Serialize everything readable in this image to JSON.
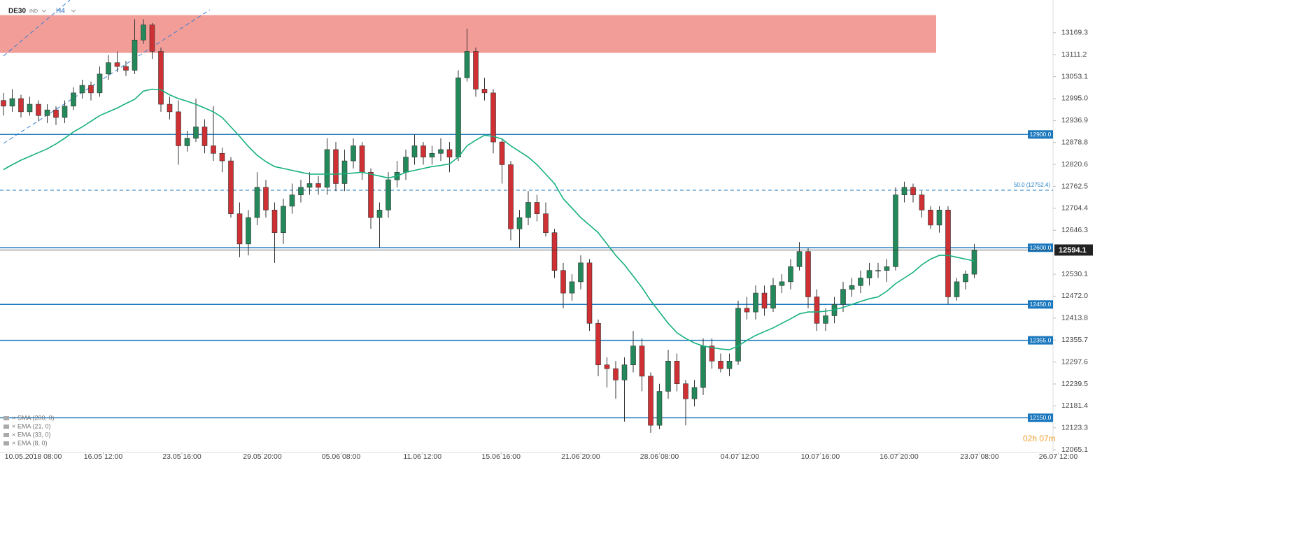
{
  "chart_data": {
    "type": "candlestick",
    "symbol": "DE30",
    "market": "IND",
    "timeframe": "H4",
    "up_color": "#23895a",
    "down_color": "#cf3034",
    "ema_color": "#16b07f",
    "level_color": "#1b78be",
    "xlim": [
      -0.4,
      120.0
    ],
    "ylim": [
      12058,
      13256
    ],
    "xticks": [
      {
        "value": 3.4,
        "label": "10.05.2018  08:00"
      },
      {
        "value": 11.4,
        "label": "16.05  12:00"
      },
      {
        "value": 20.4,
        "label": "23.05  16:00"
      },
      {
        "value": 29.6,
        "label": "29.05  20:00"
      },
      {
        "value": 38.6,
        "label": "05.06  08:00"
      },
      {
        "value": 47.9,
        "label": "11.06  12:00"
      },
      {
        "value": 56.9,
        "label": "15.06  16:00"
      },
      {
        "value": 66,
        "label": "21.06  20:00"
      },
      {
        "value": 75,
        "label": "28.06  08:00"
      },
      {
        "value": 84.2,
        "label": "04.07  12:00"
      },
      {
        "value": 93.4,
        "label": "10.07  16:00"
      },
      {
        "value": 102.4,
        "label": "16.07  20:00"
      },
      {
        "value": 111.6,
        "label": "23.07  08:00"
      },
      {
        "value": 120.6,
        "label": "26.07  12:00"
      }
    ],
    "yticks": [
      13169.3,
      13111.2,
      13053.1,
      {
        "value": 12995.0,
        "label": "12995.0"
      },
      12936.9,
      12878.8,
      12820.6,
      12762.5,
      12704.4,
      12646.3,
      12530.1,
      {
        "value": 12472.0,
        "label": "12472.0"
      },
      12413.8,
      12355.7,
      12297.6,
      12239.5,
      12181.4,
      12123.3,
      12065.1
    ],
    "zone": {
      "from": 13116,
      "to": 13216,
      "color": "#f29d98"
    },
    "levels": [
      {
        "value": 12900,
        "label": "12900.0"
      },
      {
        "value": 12600,
        "label": "12600.0"
      },
      {
        "value": 12450,
        "label": "12450.0"
      },
      {
        "value": 12355,
        "label": "12355.0"
      },
      {
        "value": 12150,
        "label": "12150.0"
      }
    ],
    "fib": {
      "value": 12752.4,
      "label": "50.0 (12752.4)"
    },
    "last_price": 12594.1,
    "timer": "02h 07m",
    "indicators": [
      "SMA  (200, 0)",
      "EMA  (21, 0)",
      "EMA  (33, 0)",
      "EMA  (8, 0)"
    ],
    "candles": [
      [
        12990,
        13010,
        12950,
        12975
      ],
      [
        12975,
        13020,
        12960,
        12995
      ],
      [
        12995,
        13005,
        12945,
        12960
      ],
      [
        12960,
        13000,
        12950,
        12980
      ],
      [
        12980,
        12990,
        12935,
        12950
      ],
      [
        12950,
        12980,
        12930,
        12965
      ],
      [
        12965,
        12975,
        12925,
        12945
      ],
      [
        12945,
        12990,
        12930,
        12975
      ],
      [
        12975,
        13025,
        12965,
        13010
      ],
      [
        13010,
        13045,
        12995,
        13030
      ],
      [
        13030,
        13040,
        12990,
        13010
      ],
      [
        13010,
        13080,
        13000,
        13060
      ],
      [
        13060,
        13110,
        13045,
        13090
      ],
      [
        13090,
        13120,
        13065,
        13080
      ],
      [
        13080,
        13095,
        13055,
        13070
      ],
      [
        13070,
        13205,
        13060,
        13150
      ],
      [
        13150,
        13205,
        13140,
        13190
      ],
      [
        13190,
        13195,
        13100,
        13120
      ],
      [
        13120,
        13130,
        12960,
        12980
      ],
      [
        12980,
        13000,
        12940,
        12960
      ],
      [
        12960,
        12990,
        12820,
        12870
      ],
      [
        12870,
        12910,
        12855,
        12890
      ],
      [
        12890,
        12995,
        12880,
        12920
      ],
      [
        12920,
        12940,
        12850,
        12870
      ],
      [
        12870,
        12975,
        12830,
        12850
      ],
      [
        12850,
        12865,
        12800,
        12830
      ],
      [
        12830,
        12840,
        12680,
        12690
      ],
      [
        12690,
        12720,
        12575,
        12610
      ],
      [
        12610,
        12700,
        12580,
        12680
      ],
      [
        12680,
        12800,
        12660,
        12760
      ],
      [
        12760,
        12780,
        12680,
        12700
      ],
      [
        12700,
        12720,
        12560,
        12640
      ],
      [
        12640,
        12730,
        12610,
        12710
      ],
      [
        12710,
        12770,
        12690,
        12740
      ],
      [
        12740,
        12780,
        12720,
        12760
      ],
      [
        12760,
        12800,
        12740,
        12770
      ],
      [
        12770,
        12790,
        12740,
        12760
      ],
      [
        12760,
        12890,
        12740,
        12860
      ],
      [
        12860,
        12880,
        12750,
        12770
      ],
      [
        12770,
        12860,
        12750,
        12830
      ],
      [
        12830,
        12890,
        12810,
        12870
      ],
      [
        12870,
        12880,
        12780,
        12800
      ],
      [
        12800,
        12810,
        12650,
        12680
      ],
      [
        12680,
        12720,
        12600,
        12700
      ],
      [
        12700,
        12800,
        12680,
        12780
      ],
      [
        12780,
        12830,
        12760,
        12800
      ],
      [
        12800,
        12860,
        12780,
        12840
      ],
      [
        12840,
        12900,
        12820,
        12870
      ],
      [
        12870,
        12880,
        12820,
        12840
      ],
      [
        12840,
        12870,
        12820,
        12850
      ],
      [
        12850,
        12890,
        12830,
        12860
      ],
      [
        12860,
        12880,
        12800,
        12840
      ],
      [
        12840,
        13070,
        12830,
        13050
      ],
      [
        13050,
        13180,
        13040,
        13120
      ],
      [
        13120,
        13130,
        13000,
        13020
      ],
      [
        13020,
        13050,
        12990,
        13010
      ],
      [
        13010,
        13020,
        12850,
        12880
      ],
      [
        12880,
        12890,
        12770,
        12820
      ],
      [
        12820,
        12830,
        12620,
        12650
      ],
      [
        12650,
        12700,
        12600,
        12680
      ],
      [
        12680,
        12750,
        12660,
        12720
      ],
      [
        12720,
        12740,
        12670,
        12690
      ],
      [
        12690,
        12720,
        12630,
        12640
      ],
      [
        12640,
        12650,
        12520,
        12540
      ],
      [
        12540,
        12560,
        12440,
        12480
      ],
      [
        12480,
        12530,
        12460,
        12510
      ],
      [
        12510,
        12580,
        12490,
        12560
      ],
      [
        12560,
        12570,
        12380,
        12400
      ],
      [
        12400,
        12410,
        12260,
        12290
      ],
      [
        12290,
        12310,
        12230,
        12280
      ],
      [
        12280,
        12300,
        12200,
        12250
      ],
      [
        12250,
        12310,
        12140,
        12290
      ],
      [
        12290,
        12380,
        12270,
        12340
      ],
      [
        12340,
        12360,
        12220,
        12260
      ],
      [
        12260,
        12270,
        12110,
        12130
      ],
      [
        12130,
        12240,
        12120,
        12220
      ],
      [
        12220,
        12330,
        12200,
        12300
      ],
      [
        12300,
        12320,
        12220,
        12240
      ],
      [
        12240,
        12250,
        12130,
        12200
      ],
      [
        12200,
        12250,
        12180,
        12230
      ],
      [
        12230,
        12360,
        12210,
        12340
      ],
      [
        12340,
        12360,
        12280,
        12300
      ],
      [
        12300,
        12320,
        12270,
        12280
      ],
      [
        12280,
        12320,
        12260,
        12300
      ],
      [
        12300,
        12460,
        12290,
        12440
      ],
      [
        12440,
        12470,
        12410,
        12430
      ],
      [
        12430,
        12500,
        12410,
        12480
      ],
      [
        12480,
        12500,
        12420,
        12440
      ],
      [
        12440,
        12520,
        12430,
        12500
      ],
      [
        12500,
        12530,
        12480,
        12510
      ],
      [
        12510,
        12570,
        12490,
        12550
      ],
      [
        12550,
        12615,
        12540,
        12590
      ],
      [
        12590,
        12600,
        12440,
        12470
      ],
      [
        12470,
        12490,
        12380,
        12400
      ],
      [
        12400,
        12440,
        12380,
        12420
      ],
      [
        12420,
        12470,
        12400,
        12450
      ],
      [
        12450,
        12510,
        12430,
        12490
      ],
      [
        12490,
        12520,
        12470,
        12500
      ],
      [
        12500,
        12540,
        12480,
        12520
      ],
      [
        12520,
        12560,
        12500,
        12540
      ],
      [
        12540,
        12560,
        12520,
        12540
      ],
      [
        12540,
        12570,
        12510,
        12550
      ],
      [
        12550,
        12760,
        12540,
        12740
      ],
      [
        12740,
        12775,
        12720,
        12760
      ],
      [
        12760,
        12770,
        12720,
        12740
      ],
      [
        12740,
        12750,
        12680,
        12700
      ],
      [
        12700,
        12710,
        12650,
        12660
      ],
      [
        12660,
        12710,
        12640,
        12700
      ],
      [
        12700,
        12710,
        12450,
        12470
      ],
      [
        12470,
        12520,
        12460,
        12510
      ],
      [
        12510,
        12540,
        12490,
        12530
      ],
      [
        12530,
        12610,
        12520,
        12594.1
      ]
    ],
    "ema": [
      12807,
      12820,
      12832,
      12842,
      12852,
      12862,
      12875,
      12890,
      12907,
      12920,
      12935,
      12950,
      12960,
      12970,
      12982,
      12993,
      13015,
      13020,
      13018,
      13005,
      12995,
      12988,
      12980,
      12970,
      12960,
      12945,
      12920,
      12895,
      12868,
      12845,
      12828,
      12815,
      12810,
      12805,
      12800,
      12795,
      12795,
      12795,
      12795,
      12796,
      12798,
      12800,
      12795,
      12790,
      12785,
      12790,
      12800,
      12805,
      12810,
      12815,
      12818,
      12822,
      12840,
      12870,
      12885,
      12898,
      12895,
      12888,
      12870,
      12855,
      12840,
      12820,
      12795,
      12770,
      12730,
      12705,
      12680,
      12660,
      12640,
      12610,
      12580,
      12555,
      12525,
      12495,
      12460,
      12430,
      12400,
      12375,
      12360,
      12348,
      12340,
      12336,
      12332,
      12330,
      12340,
      12355,
      12368,
      12378,
      12388,
      12400,
      12412,
      12425,
      12430,
      12430,
      12432,
      12436,
      12442,
      12450,
      12458,
      12465,
      12470,
      12485,
      12505,
      12520,
      12535,
      12555,
      12570,
      12580,
      12580,
      12575,
      12570,
      12565
    ]
  }
}
